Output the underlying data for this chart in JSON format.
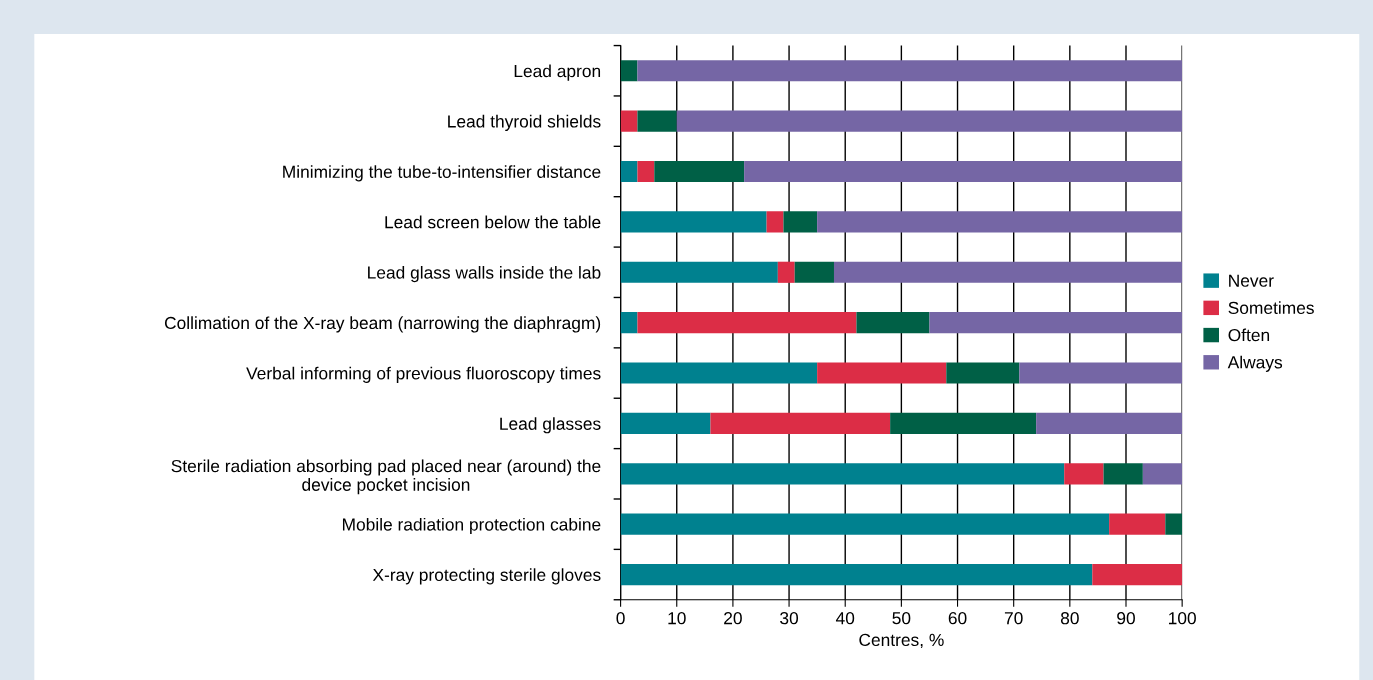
{
  "chart_data": {
    "type": "bar",
    "orientation": "horizontal",
    "stacked": true,
    "xlabel": "Centres, %",
    "categories": [
      "Lead apron",
      "Lead thyroid shields",
      "Minimizing the tube-to-intensifier distance",
      "Lead screen below the table",
      "Lead glass walls inside the lab",
      "Collimation of the X-ray beam (narrowing the diaphragm)",
      "Verbal informing of previous fluoroscopy times",
      "Lead glasses",
      "Sterile radiation absorbing pad placed near (around) the\ndevice pocket incision",
      "Mobile radiation protection cabine",
      "X-ray protecting sterile gloves"
    ],
    "series": [
      {
        "name": "Never",
        "color": "#00818f",
        "values": [
          0,
          0,
          3,
          26,
          28,
          3,
          35,
          16,
          79,
          87,
          84
        ]
      },
      {
        "name": "Sometimes",
        "color": "#dc2d46",
        "values": [
          0,
          3,
          3,
          3,
          3,
          39,
          23,
          32,
          7,
          10,
          16
        ]
      },
      {
        "name": "Often",
        "color": "#006046",
        "values": [
          3,
          7,
          16,
          6,
          7,
          13,
          13,
          26,
          7,
          3,
          0
        ]
      },
      {
        "name": "Always",
        "color": "#7566a5",
        "values": [
          97,
          90,
          78,
          65,
          62,
          45,
          29,
          26,
          7,
          0,
          0
        ]
      }
    ],
    "xlim": [
      0,
      100
    ],
    "xticks": [
      0,
      10,
      20,
      30,
      40,
      50,
      60,
      70,
      80,
      90,
      100
    ],
    "grid": "x",
    "legend": "right"
  }
}
